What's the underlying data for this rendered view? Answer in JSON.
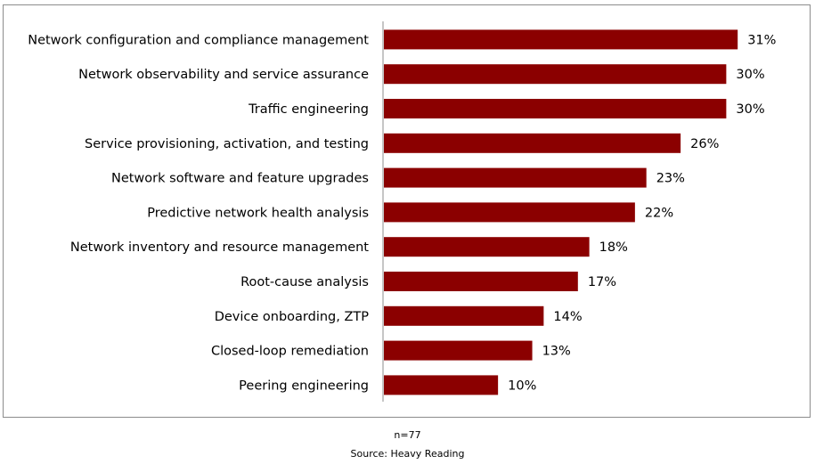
{
  "chart_data": {
    "type": "bar",
    "orientation": "horizontal",
    "title": "",
    "xlabel": "",
    "ylabel": "",
    "categories": [
      "Network configuration and compliance management",
      "Network observability and service assurance",
      "Traffic engineering",
      "Service provisioning, activation, and testing",
      "Network software and feature upgrades",
      "Predictive network health analysis",
      "Network inventory and resource management",
      "Root-cause analysis",
      "Device onboarding, ZTP",
      "Closed-loop remediation",
      "Peering engineering"
    ],
    "values": [
      31,
      30,
      30,
      26,
      23,
      22,
      18,
      17,
      14,
      13,
      10
    ],
    "value_labels": [
      "31%",
      "30%",
      "30%",
      "26%",
      "23%",
      "22%",
      "18%",
      "17%",
      "14%",
      "13%",
      "10%"
    ],
    "unit": "%",
    "xlim": [
      0,
      32
    ],
    "bar_color": "#8b0000",
    "grid": false,
    "legend": "none"
  },
  "notes": {
    "sample": "n=77",
    "source": "Source: Heavy Reading"
  }
}
